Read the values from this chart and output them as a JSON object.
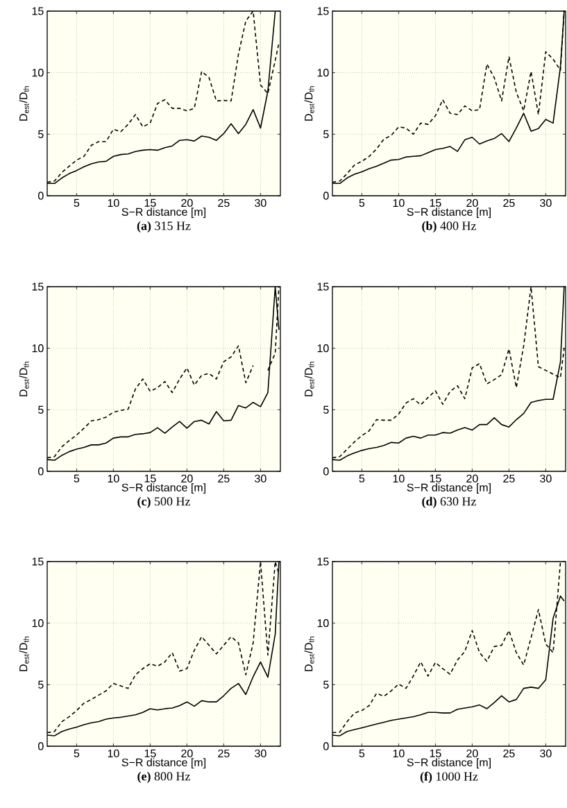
{
  "chart_data": [
    {
      "type": "line",
      "title": "**(a)** 315 Hz",
      "xlabel": "S−R distance [m]",
      "ylabel": "D$_{est}$/D$_{th}$",
      "x": [
        1,
        2,
        3,
        4,
        5,
        6,
        7,
        8,
        9,
        10,
        11,
        12,
        13,
        14,
        15,
        16,
        17,
        18,
        19,
        20,
        21,
        22,
        23,
        24,
        25,
        26,
        27,
        28,
        29,
        30,
        31,
        32,
        32.5
      ],
      "xlim": [
        1,
        32.7
      ],
      "ylim": [
        0,
        15
      ],
      "xticks": [
        5,
        10,
        15,
        20,
        25,
        30
      ],
      "yticks": [
        0,
        5,
        10,
        15
      ],
      "grid": true,
      "series": [
        {
          "color": "#000000",
          "line_style": "solid",
          "values": [
            1.0,
            1.0,
            1.45,
            1.8,
            2.05,
            2.35,
            2.6,
            2.75,
            2.8,
            3.2,
            3.35,
            3.4,
            3.6,
            3.7,
            3.75,
            3.7,
            3.9,
            4.05,
            4.5,
            4.55,
            4.45,
            4.85,
            4.75,
            4.5,
            5.05,
            5.85,
            5.05,
            5.8,
            7.0,
            5.5,
            8.5,
            15,
            null
          ]
        },
        {
          "color": "#000000",
          "line_style": "dashed",
          "values": [
            1.1,
            1.2,
            1.9,
            2.4,
            2.9,
            3.2,
            4.1,
            4.4,
            4.4,
            5.4,
            5.2,
            5.8,
            6.6,
            5.6,
            5.9,
            7.5,
            7.8,
            7.1,
            7.1,
            6.9,
            7.1,
            10.1,
            9.6,
            7.7,
            7.75,
            7.7,
            11.5,
            14.2,
            15,
            9.0,
            8.3,
            11.0,
            12.4
          ]
        }
      ]
    },
    {
      "type": "line",
      "title": "**(b)** 400 Hz",
      "xlabel": "S−R distance [m]",
      "ylabel": "D$_{est}$/D$_{th}$",
      "x": [
        1,
        2,
        3,
        4,
        5,
        6,
        7,
        8,
        9,
        10,
        11,
        12,
        13,
        14,
        15,
        16,
        17,
        18,
        19,
        20,
        21,
        22,
        23,
        24,
        25,
        26,
        27,
        28,
        29,
        30,
        31,
        32,
        32.5
      ],
      "xlim": [
        1,
        32.7
      ],
      "ylim": [
        0,
        15
      ],
      "xticks": [
        5,
        10,
        15,
        20,
        25,
        30
      ],
      "yticks": [
        0,
        5,
        10,
        15
      ],
      "grid": true,
      "series": [
        {
          "color": "#000000",
          "line_style": "solid",
          "values": [
            1.0,
            1.0,
            1.45,
            1.75,
            1.95,
            2.2,
            2.4,
            2.65,
            2.9,
            2.95,
            3.15,
            3.2,
            3.25,
            3.5,
            3.75,
            3.85,
            4.0,
            3.6,
            4.55,
            4.75,
            4.2,
            4.45,
            4.65,
            5.05,
            4.4,
            5.5,
            6.7,
            5.25,
            5.45,
            6.2,
            5.9,
            10.5,
            15
          ]
        },
        {
          "color": "#000000",
          "line_style": "dashed",
          "values": [
            1.1,
            1.2,
            1.8,
            2.5,
            2.8,
            3.2,
            3.8,
            4.6,
            4.9,
            5.6,
            5.5,
            5.0,
            5.9,
            5.8,
            6.5,
            7.8,
            6.7,
            6.6,
            7.3,
            6.9,
            7.0,
            10.7,
            9.6,
            7.7,
            11.3,
            8.4,
            6.9,
            10.1,
            6.6,
            11.7,
            11.1,
            10.2,
            15
          ]
        }
      ]
    },
    {
      "type": "line",
      "title": "**(c)** 500 Hz",
      "xlabel": "S−R distance [m]",
      "ylabel": "D$_{est}$/D$_{th}$",
      "x": [
        1,
        2,
        3,
        4,
        5,
        6,
        7,
        8,
        9,
        10,
        11,
        12,
        13,
        14,
        15,
        16,
        17,
        18,
        19,
        20,
        21,
        22,
        23,
        24,
        25,
        26,
        27,
        28,
        29,
        30,
        31,
        32,
        32.5
      ],
      "xlim": [
        1,
        32.7
      ],
      "ylim": [
        0,
        15
      ],
      "xticks": [
        5,
        10,
        15,
        20,
        25,
        30
      ],
      "yticks": [
        0,
        5,
        10,
        15
      ],
      "grid": true,
      "series": [
        {
          "color": "#000000",
          "line_style": "solid",
          "values": [
            0.95,
            0.9,
            1.3,
            1.6,
            1.8,
            1.95,
            2.15,
            2.15,
            2.3,
            2.7,
            2.8,
            2.8,
            3.0,
            3.05,
            3.15,
            3.55,
            3.1,
            3.6,
            4.05,
            3.5,
            4.05,
            4.15,
            3.85,
            4.85,
            4.1,
            4.15,
            5.35,
            5.15,
            5.6,
            5.25,
            6.4,
            15,
            11.5
          ]
        },
        {
          "color": "#000000",
          "line_style": "dashed",
          "values": [
            1.1,
            1.2,
            2.0,
            2.5,
            2.95,
            3.5,
            4.1,
            4.2,
            4.4,
            4.8,
            4.95,
            5.05,
            6.7,
            7.5,
            6.5,
            6.8,
            7.3,
            6.4,
            7.5,
            8.4,
            7.0,
            7.8,
            7.95,
            7.5,
            8.9,
            9.3,
            10.2,
            7.2,
            8.6,
            null,
            8.2,
            9.6,
            15
          ]
        }
      ]
    },
    {
      "type": "line",
      "title": "**(d)** 630 Hz",
      "xlabel": "S−R distance [m]",
      "ylabel": "D$_{est}$/D$_{th}$",
      "x": [
        1,
        2,
        3,
        4,
        5,
        6,
        7,
        8,
        9,
        10,
        11,
        12,
        13,
        14,
        15,
        16,
        17,
        18,
        19,
        20,
        21,
        22,
        23,
        24,
        25,
        26,
        27,
        28,
        29,
        30,
        31,
        32,
        32.5
      ],
      "xlim": [
        1,
        32.7
      ],
      "ylim": [
        0,
        15
      ],
      "xticks": [
        5,
        10,
        15,
        20,
        25,
        30
      ],
      "yticks": [
        0,
        5,
        10,
        15
      ],
      "grid": true,
      "series": [
        {
          "color": "#000000",
          "line_style": "solid",
          "values": [
            0.95,
            0.9,
            1.25,
            1.5,
            1.7,
            1.85,
            1.95,
            2.1,
            2.35,
            2.3,
            2.7,
            2.85,
            2.7,
            2.95,
            2.95,
            3.15,
            3.1,
            3.35,
            3.55,
            3.35,
            3.8,
            3.8,
            4.35,
            3.8,
            3.6,
            4.2,
            4.7,
            5.6,
            5.75,
            5.85,
            5.85,
            8.9,
            15
          ]
        },
        {
          "color": "#000000",
          "line_style": "dashed",
          "values": [
            1.1,
            1.2,
            1.8,
            2.4,
            2.9,
            3.3,
            4.2,
            4.15,
            4.15,
            4.65,
            5.55,
            5.9,
            5.4,
            6.0,
            6.55,
            5.45,
            6.5,
            6.95,
            5.9,
            8.4,
            8.75,
            7.1,
            7.45,
            7.85,
            9.95,
            6.8,
            10.2,
            15,
            8.5,
            8.2,
            7.9,
            7.6,
            10.0
          ]
        }
      ]
    },
    {
      "type": "line",
      "title": "**(e)** 800 Hz",
      "xlabel": "S−R distance [m]",
      "ylabel": "D$_{est}$/D$_{th}$",
      "x": [
        1,
        2,
        3,
        4,
        5,
        6,
        7,
        8,
        9,
        10,
        11,
        12,
        13,
        14,
        15,
        16,
        17,
        18,
        19,
        20,
        21,
        22,
        23,
        24,
        25,
        26,
        27,
        28,
        29,
        30,
        31,
        32,
        32.5
      ],
      "xlim": [
        1,
        32.7
      ],
      "ylim": [
        0,
        15
      ],
      "xticks": [
        5,
        10,
        15,
        20,
        25,
        30
      ],
      "yticks": [
        0,
        5,
        10,
        15
      ],
      "grid": true,
      "series": [
        {
          "color": "#000000",
          "line_style": "solid",
          "values": [
            0.9,
            0.85,
            1.2,
            1.4,
            1.55,
            1.75,
            1.9,
            2.0,
            2.2,
            2.3,
            2.35,
            2.45,
            2.55,
            2.75,
            3.05,
            2.95,
            3.05,
            3.1,
            3.3,
            3.6,
            3.25,
            3.7,
            3.6,
            3.6,
            4.1,
            4.7,
            5.1,
            4.2,
            5.65,
            6.85,
            5.6,
            9.1,
            15
          ]
        },
        {
          "color": "#000000",
          "line_style": "dashed",
          "values": [
            1.1,
            1.2,
            2.0,
            2.4,
            2.9,
            3.5,
            3.8,
            4.15,
            4.5,
            5.1,
            4.9,
            4.7,
            5.8,
            6.3,
            6.7,
            6.5,
            6.85,
            7.6,
            6.1,
            6.3,
            7.8,
            8.9,
            8.2,
            7.5,
            8.2,
            8.9,
            8.4,
            5.8,
            8.4,
            15,
            7.4,
            15,
            14.0
          ]
        }
      ]
    },
    {
      "type": "line",
      "title": "**(f)** 1000 Hz",
      "xlabel": "S−R distance [m]",
      "ylabel": "D$_{est}$/D$_{th}$",
      "x": [
        1,
        2,
        3,
        4,
        5,
        6,
        7,
        8,
        9,
        10,
        11,
        12,
        13,
        14,
        15,
        16,
        17,
        18,
        19,
        20,
        21,
        22,
        23,
        24,
        25,
        26,
        27,
        28,
        29,
        30,
        31,
        32,
        32.5
      ],
      "xlim": [
        1,
        32.7
      ],
      "ylim": [
        0,
        15
      ],
      "xticks": [
        5,
        10,
        15,
        20,
        25,
        30
      ],
      "yticks": [
        0,
        5,
        10,
        15
      ],
      "grid": true,
      "series": [
        {
          "color": "#000000",
          "line_style": "solid",
          "values": [
            0.9,
            0.85,
            1.2,
            1.35,
            1.5,
            1.65,
            1.8,
            1.95,
            2.1,
            2.2,
            2.3,
            2.4,
            2.55,
            2.75,
            2.75,
            2.7,
            2.7,
            3.0,
            3.1,
            3.2,
            3.35,
            3.05,
            3.55,
            4.1,
            3.6,
            3.8,
            4.7,
            4.8,
            4.7,
            5.4,
            10.4,
            12.2,
            11.8
          ]
        },
        {
          "color": "#000000",
          "line_style": "dashed",
          "values": [
            1.1,
            1.15,
            2.0,
            2.7,
            2.9,
            3.3,
            4.3,
            4.05,
            4.5,
            5.05,
            4.7,
            5.7,
            6.85,
            5.7,
            6.8,
            6.3,
            5.85,
            7.0,
            7.7,
            9.4,
            7.6,
            6.9,
            8.1,
            8.2,
            9.4,
            7.6,
            6.6,
            8.8,
            11.1,
            8.3,
            7.6,
            15,
            null
          ]
        }
      ]
    }
  ]
}
